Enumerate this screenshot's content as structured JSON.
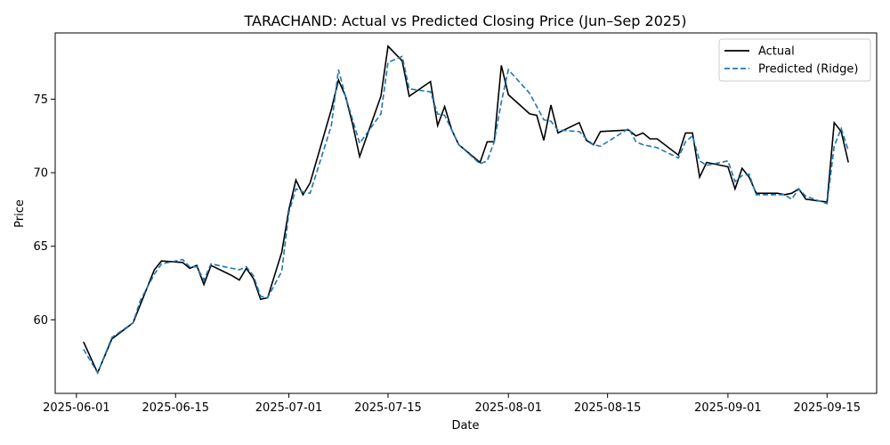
{
  "chart_data": {
    "type": "line",
    "title": "TARACHAND: Actual vs Predicted Closing Price (Jun–Sep 2025)",
    "xlabel": "Date",
    "ylabel": "Price",
    "xlim": [
      "2025-05-29",
      "2025-09-22"
    ],
    "ylim": [
      55.0,
      79.5
    ],
    "x_ticks": [
      "2025-06-01",
      "2025-06-15",
      "2025-07-01",
      "2025-07-15",
      "2025-08-01",
      "2025-08-15",
      "2025-09-01",
      "2025-09-15"
    ],
    "y_ticks": [
      60,
      65,
      70,
      75
    ],
    "grid": false,
    "legend": "top-right",
    "colors": {
      "actual": "#000000",
      "predicted": "#1f77b4"
    },
    "series": [
      {
        "name": "Actual",
        "style": "solid",
        "points": [
          [
            "2025-06-02",
            58.5
          ],
          [
            "2025-06-04",
            56.4
          ],
          [
            "2025-06-06",
            58.7
          ],
          [
            "2025-06-09",
            59.8
          ],
          [
            "2025-06-10",
            61.0
          ],
          [
            "2025-06-12",
            63.4
          ],
          [
            "2025-06-13",
            64.0
          ],
          [
            "2025-06-16",
            63.9
          ],
          [
            "2025-06-17",
            63.5
          ],
          [
            "2025-06-18",
            63.7
          ],
          [
            "2025-06-19",
            62.4
          ],
          [
            "2025-06-20",
            63.7
          ],
          [
            "2025-06-23",
            63.0
          ],
          [
            "2025-06-24",
            62.7
          ],
          [
            "2025-06-25",
            63.5
          ],
          [
            "2025-06-26",
            62.8
          ],
          [
            "2025-06-27",
            61.4
          ],
          [
            "2025-06-28",
            61.5
          ],
          [
            "2025-06-30",
            64.6
          ],
          [
            "2025-07-01",
            67.5
          ],
          [
            "2025-07-02",
            69.5
          ],
          [
            "2025-07-03",
            68.5
          ],
          [
            "2025-07-04",
            69.3
          ],
          [
            "2025-07-07",
            74.3
          ],
          [
            "2025-07-08",
            76.3
          ],
          [
            "2025-07-09",
            75.2
          ],
          [
            "2025-07-10",
            73.3
          ],
          [
            "2025-07-11",
            71.1
          ],
          [
            "2025-07-14",
            75.2
          ],
          [
            "2025-07-15",
            78.6
          ],
          [
            "2025-07-17",
            77.6
          ],
          [
            "2025-07-18",
            75.2
          ],
          [
            "2025-07-21",
            76.2
          ],
          [
            "2025-07-22",
            73.2
          ],
          [
            "2025-07-23",
            74.5
          ],
          [
            "2025-07-24",
            72.9
          ],
          [
            "2025-07-25",
            71.9
          ],
          [
            "2025-07-28",
            70.7
          ],
          [
            "2025-07-29",
            72.1
          ],
          [
            "2025-07-30",
            72.1
          ],
          [
            "2025-07-31",
            77.3
          ],
          [
            "2025-08-01",
            75.3
          ],
          [
            "2025-08-04",
            74.0
          ],
          [
            "2025-08-05",
            73.9
          ],
          [
            "2025-08-06",
            72.2
          ],
          [
            "2025-08-07",
            74.6
          ],
          [
            "2025-08-08",
            72.7
          ],
          [
            "2025-08-11",
            73.4
          ],
          [
            "2025-08-12",
            72.2
          ],
          [
            "2025-08-13",
            71.9
          ],
          [
            "2025-08-14",
            72.8
          ],
          [
            "2025-08-18",
            72.9
          ],
          [
            "2025-08-19",
            72.5
          ],
          [
            "2025-08-20",
            72.7
          ],
          [
            "2025-08-21",
            72.3
          ],
          [
            "2025-08-22",
            72.3
          ],
          [
            "2025-08-25",
            71.2
          ],
          [
            "2025-08-26",
            72.7
          ],
          [
            "2025-08-27",
            72.7
          ],
          [
            "2025-08-28",
            69.7
          ],
          [
            "2025-08-29",
            70.7
          ],
          [
            "2025-09-01",
            70.4
          ],
          [
            "2025-09-02",
            68.9
          ],
          [
            "2025-09-03",
            70.3
          ],
          [
            "2025-09-04",
            69.7
          ],
          [
            "2025-09-05",
            68.6
          ],
          [
            "2025-09-08",
            68.6
          ],
          [
            "2025-09-09",
            68.5
          ],
          [
            "2025-09-10",
            68.6
          ],
          [
            "2025-09-11",
            68.9
          ],
          [
            "2025-09-12",
            68.2
          ],
          [
            "2025-09-15",
            68.0
          ],
          [
            "2025-09-16",
            73.4
          ],
          [
            "2025-09-17",
            72.8
          ],
          [
            "2025-09-18",
            70.7
          ]
        ]
      },
      {
        "name": "Predicted (Ridge)",
        "style": "dashed",
        "points": [
          [
            "2025-06-02",
            58.0
          ],
          [
            "2025-06-04",
            56.4
          ],
          [
            "2025-06-06",
            58.8
          ],
          [
            "2025-06-09",
            59.8
          ],
          [
            "2025-06-10",
            61.3
          ],
          [
            "2025-06-12",
            63.1
          ],
          [
            "2025-06-13",
            63.8
          ],
          [
            "2025-06-16",
            64.1
          ],
          [
            "2025-06-17",
            63.6
          ],
          [
            "2025-06-18",
            63.6
          ],
          [
            "2025-06-19",
            62.7
          ],
          [
            "2025-06-20",
            63.8
          ],
          [
            "2025-06-23",
            63.5
          ],
          [
            "2025-06-24",
            63.4
          ],
          [
            "2025-06-25",
            63.6
          ],
          [
            "2025-06-26",
            63.0
          ],
          [
            "2025-06-27",
            61.6
          ],
          [
            "2025-06-28",
            61.5
          ],
          [
            "2025-06-30",
            63.3
          ],
          [
            "2025-07-01",
            67.3
          ],
          [
            "2025-07-02",
            68.9
          ],
          [
            "2025-07-03",
            68.7
          ],
          [
            "2025-07-04",
            68.6
          ],
          [
            "2025-07-07",
            73.2
          ],
          [
            "2025-07-08",
            77.0
          ],
          [
            "2025-07-09",
            75.2
          ],
          [
            "2025-07-10",
            73.6
          ],
          [
            "2025-07-11",
            72.0
          ],
          [
            "2025-07-14",
            74.0
          ],
          [
            "2025-07-15",
            77.5
          ],
          [
            "2025-07-17",
            77.9
          ],
          [
            "2025-07-18",
            75.7
          ],
          [
            "2025-07-21",
            75.5
          ],
          [
            "2025-07-22",
            74.0
          ],
          [
            "2025-07-23",
            73.9
          ],
          [
            "2025-07-24",
            72.9
          ],
          [
            "2025-07-25",
            71.9
          ],
          [
            "2025-07-28",
            70.6
          ],
          [
            "2025-07-29",
            70.8
          ],
          [
            "2025-07-30",
            72.1
          ],
          [
            "2025-07-31",
            74.8
          ],
          [
            "2025-08-01",
            77.0
          ],
          [
            "2025-08-04",
            75.4
          ],
          [
            "2025-08-05",
            74.5
          ],
          [
            "2025-08-06",
            73.6
          ],
          [
            "2025-08-07",
            73.5
          ],
          [
            "2025-08-08",
            72.9
          ],
          [
            "2025-08-11",
            72.8
          ],
          [
            "2025-08-12",
            72.3
          ],
          [
            "2025-08-13",
            71.9
          ],
          [
            "2025-08-14",
            71.8
          ],
          [
            "2025-08-18",
            73.0
          ],
          [
            "2025-08-19",
            72.1
          ],
          [
            "2025-08-20",
            71.9
          ],
          [
            "2025-08-21",
            71.8
          ],
          [
            "2025-08-22",
            71.7
          ],
          [
            "2025-08-25",
            71.0
          ],
          [
            "2025-08-26",
            72.1
          ],
          [
            "2025-08-27",
            72.5
          ],
          [
            "2025-08-28",
            70.8
          ],
          [
            "2025-08-29",
            70.5
          ],
          [
            "2025-09-01",
            70.8
          ],
          [
            "2025-09-02",
            69.4
          ],
          [
            "2025-09-03",
            69.8
          ],
          [
            "2025-09-04",
            69.9
          ],
          [
            "2025-09-05",
            68.5
          ],
          [
            "2025-09-08",
            68.5
          ],
          [
            "2025-09-09",
            68.5
          ],
          [
            "2025-09-10",
            68.2
          ],
          [
            "2025-09-11",
            68.9
          ],
          [
            "2025-09-12",
            68.4
          ],
          [
            "2025-09-15",
            67.9
          ],
          [
            "2025-09-16",
            71.8
          ],
          [
            "2025-09-17",
            73.0
          ],
          [
            "2025-09-18",
            71.5
          ]
        ]
      }
    ]
  }
}
